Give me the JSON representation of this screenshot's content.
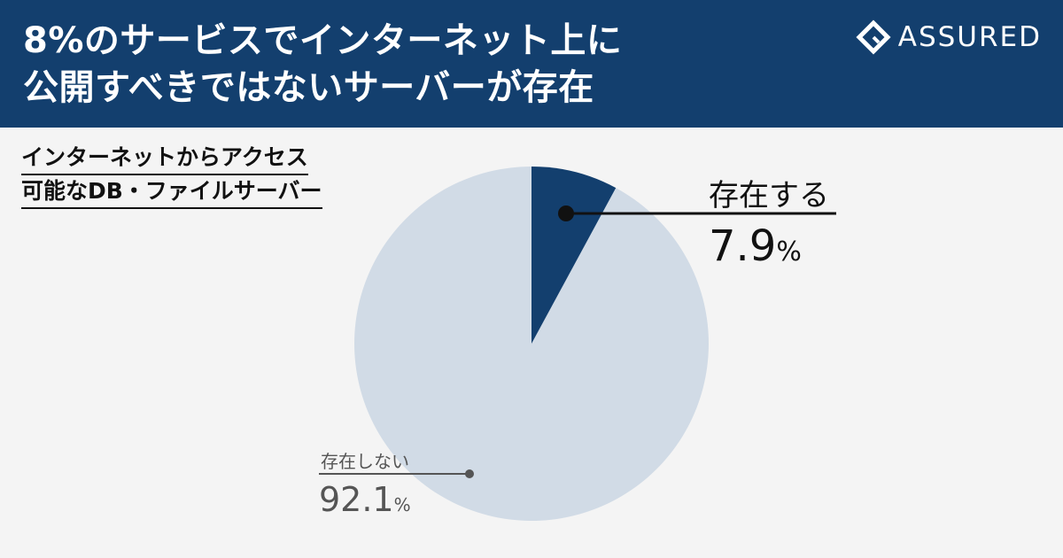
{
  "header": {
    "title_line1": "8%のサービスでインターネット上に",
    "title_line2": "公開すべきではないサーバーが存在",
    "brand": "ASSURED"
  },
  "colors": {
    "header_bg": "#133f6e",
    "slice_yes": "#133f6e",
    "slice_no": "#d1dbe6",
    "background": "#f4f4f4"
  },
  "chart_data": {
    "type": "pie",
    "title_line1": "インターネットからアクセス",
    "title_line2": "可能なDB・ファイルサーバー",
    "slices": [
      {
        "label": "存在する",
        "value": 7.9,
        "value_text": "7.9",
        "unit": "%"
      },
      {
        "label": "存在しない",
        "value": 92.1,
        "value_text": "92.1",
        "unit": "%"
      }
    ]
  }
}
